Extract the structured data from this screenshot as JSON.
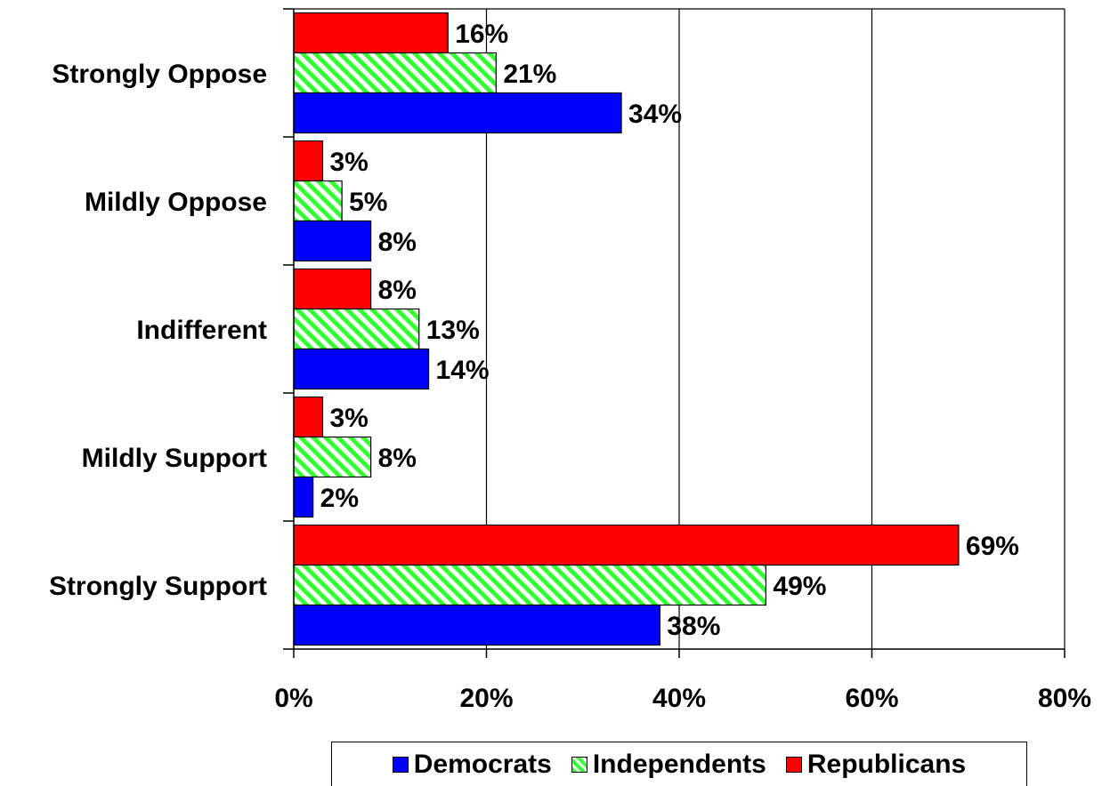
{
  "chart_data": {
    "type": "bar",
    "orientation": "horizontal",
    "categories": [
      "Strongly Oppose",
      "Mildly Oppose",
      "Indifferent",
      "Mildly Support",
      "Strongly Support"
    ],
    "series": [
      {
        "name": "Democrats",
        "values": [
          34,
          8,
          14,
          2,
          38
        ],
        "labels": [
          "34%",
          "8%",
          "14%",
          "2%",
          "38%"
        ],
        "color": "#0000ff",
        "pattern": "solid"
      },
      {
        "name": "Independents",
        "values": [
          21,
          5,
          13,
          8,
          49
        ],
        "labels": [
          "21%",
          "5%",
          "13%",
          "8%",
          "49%"
        ],
        "color": "#33ff33",
        "pattern": "diagonal-stripes"
      },
      {
        "name": "Republicans",
        "values": [
          16,
          3,
          8,
          3,
          69
        ],
        "labels": [
          "16%",
          "3%",
          "8%",
          "3%",
          "69%"
        ],
        "color": "#ff0000",
        "pattern": "solid"
      }
    ],
    "xlim": [
      0,
      80
    ],
    "xticks": [
      "0%",
      "20%",
      "40%",
      "60%",
      "80%"
    ],
    "xtick_values": [
      0,
      20,
      40,
      60,
      80
    ],
    "grid": "vertical",
    "legend_position": "bottom"
  }
}
